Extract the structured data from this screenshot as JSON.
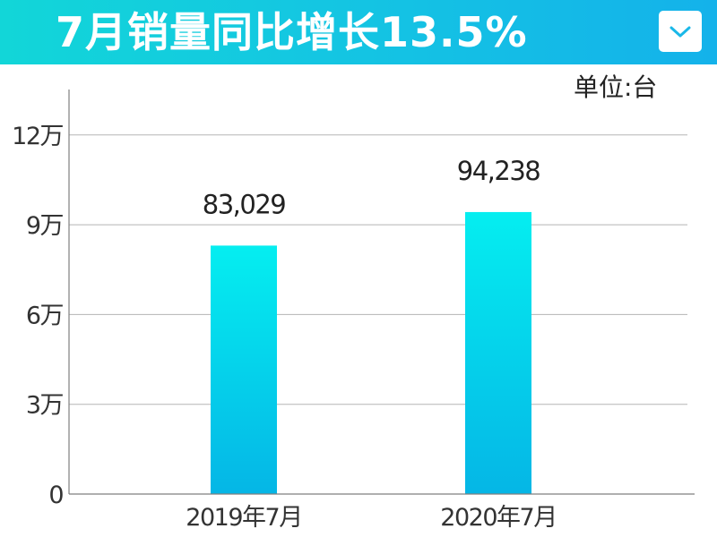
{
  "header": {
    "title": "7月销量同比增长13.5%",
    "menu_icon": "chevron-down-icon"
  },
  "unit_label": "单位:台",
  "colors": {
    "header_gradient": [
      "#12d6d8",
      "#14b2ea"
    ],
    "bar_gradient": [
      "#05eef0",
      "#05b6e6"
    ],
    "gridline": "#b5b5b5",
    "axis": "#7f7f7f"
  },
  "chart_data": {
    "type": "bar",
    "title": "7月销量同比增长13.5%",
    "xlabel": "",
    "ylabel": "",
    "categories": [
      "2019年7月",
      "2020年7月"
    ],
    "values": [
      83029,
      94238
    ],
    "value_labels": [
      "83,029",
      "94,238"
    ],
    "ylim": [
      0,
      130000
    ],
    "yticks": [
      {
        "value": 0,
        "label": "0"
      },
      {
        "value": 30000,
        "label": "3万"
      },
      {
        "value": 60000,
        "label": "6万"
      },
      {
        "value": 90000,
        "label": "9万"
      },
      {
        "value": 120000,
        "label": "12万"
      }
    ],
    "grid": true,
    "legend": "none"
  }
}
